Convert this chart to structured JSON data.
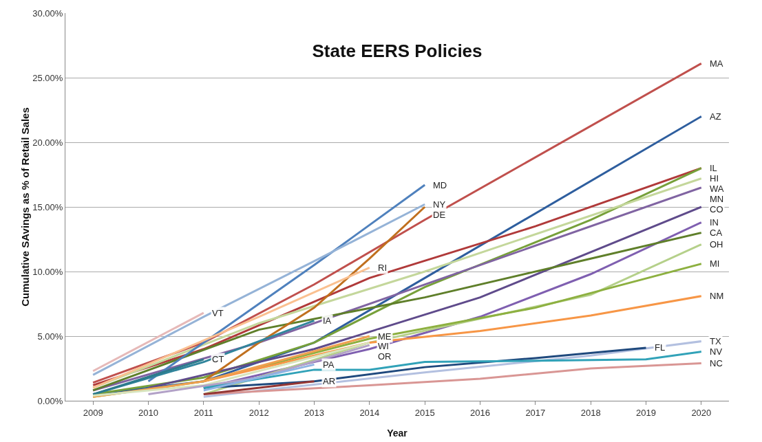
{
  "chart_data": {
    "type": "line",
    "title": "State EERS Policies",
    "xlabel": "Year",
    "ylabel": "Cumulative SAvings as % of Retail Sales",
    "xlim": [
      2008.5,
      2020.5
    ],
    "xticks": [
      2009,
      2010,
      2011,
      2012,
      2013,
      2014,
      2015,
      2016,
      2017,
      2018,
      2019,
      2020
    ],
    "ylim": [
      0,
      30
    ],
    "yticks": [
      {
        "value": 0,
        "label": "0.00%"
      },
      {
        "value": 5,
        "label": "5.00%"
      },
      {
        "value": 10,
        "label": "10.00%"
      },
      {
        "value": 15,
        "label": "15.00%"
      },
      {
        "value": 20,
        "label": "20.00%"
      },
      {
        "value": 25,
        "label": "25.00%"
      },
      {
        "value": 30,
        "label": "30.00%"
      }
    ],
    "grid": "y",
    "legend": false,
    "marker": "none",
    "line_style": "solid",
    "series": [
      {
        "name": "MA",
        "color": "#c0504d",
        "x": [
          2009,
          2011,
          2013,
          2015,
          2020
        ],
        "values": [
          1.4,
          4.5,
          9.0,
          14.0,
          26.1
        ]
      },
      {
        "name": "AZ",
        "color": "#2e5e9e",
        "x": [
          2009,
          2011,
          2013,
          2015,
          2020
        ],
        "values": [
          0.5,
          1.5,
          4.5,
          9.5,
          22.0
        ]
      },
      {
        "name": "IL",
        "color": "#b03a3a",
        "x": [
          2009,
          2011,
          2014,
          2017,
          2020
        ],
        "values": [
          1.2,
          4.0,
          9.5,
          13.5,
          18.0
        ]
      },
      {
        "name": "HI",
        "color": "#77a03a",
        "x": [
          2009,
          2011,
          2013,
          2015,
          2018,
          2020
        ],
        "values": [
          0.5,
          1.8,
          4.5,
          8.8,
          14.0,
          18.0
        ]
      },
      {
        "name": "WA",
        "color": "#c4d79b",
        "x": [
          2009,
          2012,
          2015,
          2020
        ],
        "values": [
          1.0,
          6.0,
          10.0,
          17.2
        ]
      },
      {
        "name": "MN",
        "color": "#8064a2",
        "x": [
          2009,
          2012,
          2015,
          2020
        ],
        "values": [
          0.8,
          4.5,
          9.0,
          16.5
        ]
      },
      {
        "name": "CO",
        "color": "#5f4b8b",
        "x": [
          2010,
          2013,
          2016,
          2020
        ],
        "values": [
          1.0,
          4.0,
          8.0,
          15.0
        ]
      },
      {
        "name": "IN",
        "color": "#7f5fb0",
        "x": [
          2011,
          2014,
          2016,
          2018,
          2020
        ],
        "values": [
          1.0,
          4.0,
          6.5,
          9.8,
          13.8
        ]
      },
      {
        "name": "CA",
        "color": "#5f7f2a",
        "x": [
          2009,
          2012,
          2015,
          2018,
          2020
        ],
        "values": [
          0.8,
          5.5,
          8.0,
          11.0,
          13.0
        ]
      },
      {
        "name": "OH",
        "color": "#b5d08a",
        "x": [
          2011,
          2014,
          2018,
          2020
        ],
        "values": [
          0.5,
          4.5,
          8.2,
          12.1
        ]
      },
      {
        "name": "MI",
        "color": "#8db040",
        "x": [
          2009,
          2011,
          2014,
          2017,
          2020
        ],
        "values": [
          0.3,
          1.5,
          4.8,
          7.2,
          10.6
        ]
      },
      {
        "name": "NM",
        "color": "#f79646",
        "x": [
          2011,
          2014,
          2016,
          2018,
          2020
        ],
        "values": [
          1.5,
          4.5,
          5.4,
          6.6,
          8.1
        ]
      },
      {
        "name": "TX",
        "color": "#b3c0e0",
        "x": [
          2011,
          2015,
          2018,
          2020
        ],
        "values": [
          0.3,
          2.2,
          3.5,
          4.6
        ]
      },
      {
        "name": "FL",
        "color": "#1f497d",
        "x": [
          2011,
          2013,
          2015,
          2017,
          2019
        ],
        "values": [
          1.0,
          1.5,
          2.6,
          3.3,
          4.1
        ]
      },
      {
        "name": "NV",
        "color": "#31a2b8",
        "x": [
          2011,
          2013,
          2014,
          2015,
          2019,
          2020
        ],
        "values": [
          1.0,
          2.4,
          2.4,
          3.0,
          3.2,
          3.8
        ]
      },
      {
        "name": "NC",
        "color": "#d99694",
        "x": [
          2011,
          2014,
          2016,
          2018,
          2020
        ],
        "values": [
          0.5,
          1.2,
          1.7,
          2.5,
          2.9
        ]
      },
      {
        "name": "MD",
        "color": "#4f81bd",
        "x": [
          2010,
          2011,
          2013,
          2015
        ],
        "values": [
          1.5,
          4.5,
          10.5,
          16.7
        ]
      },
      {
        "name": "NY",
        "color": "#95b3d7",
        "x": [
          2009,
          2011,
          2013,
          2015
        ],
        "values": [
          2.0,
          6.5,
          10.8,
          15.2
        ]
      },
      {
        "name": "DE",
        "color": "#c0701f",
        "x": [
          2011,
          2012,
          2013,
          2014,
          2015
        ],
        "values": [
          1.5,
          4.5,
          7.2,
          11.0,
          15.0
        ]
      },
      {
        "name": "VT",
        "color": "#e6b9b8",
        "x": [
          2009,
          2011
        ],
        "values": [
          2.3,
          6.8
        ]
      },
      {
        "name": "RI",
        "color": "#fac090",
        "x": [
          2009,
          2012,
          2014
        ],
        "values": [
          1.0,
          6.5,
          10.3
        ]
      },
      {
        "name": "IA",
        "color": "#31859c",
        "x": [
          2009,
          2011,
          2013
        ],
        "values": [
          0.5,
          3.0,
          6.2
        ]
      },
      {
        "name": "CT",
        "color": "#2c7a8c",
        "x": [
          2009,
          2011
        ],
        "values": [
          0.5,
          3.2
        ]
      },
      {
        "name": "ME",
        "color": "#f0a050",
        "x": [
          2009,
          2011,
          2014
        ],
        "values": [
          0.3,
          1.5,
          5.0
        ]
      },
      {
        "name": "WI",
        "color": "#d7e4bd",
        "x": [
          2009,
          2011,
          2014
        ],
        "values": [
          0.4,
          1.2,
          4.5
        ]
      },
      {
        "name": "OR",
        "color": "#b2a1c7",
        "x": [
          2010,
          2012,
          2014
        ],
        "values": [
          0.5,
          1.8,
          4.3
        ]
      },
      {
        "name": "PA",
        "color": "#8eb4e3",
        "x": [
          2011,
          2013
        ],
        "values": [
          0.8,
          2.8
        ]
      },
      {
        "name": "AR",
        "color": "#943634",
        "x": [
          2011,
          2013
        ],
        "values": [
          0.5,
          1.5
        ]
      }
    ]
  }
}
